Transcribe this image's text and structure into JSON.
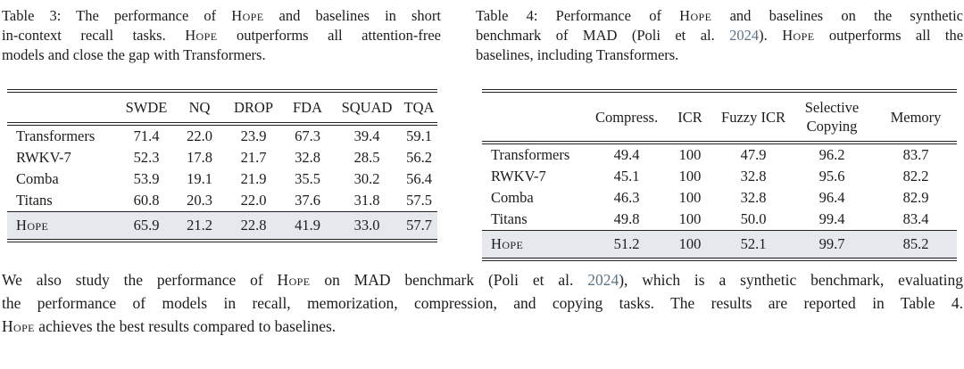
{
  "page": {
    "background": "#ffffff",
    "text_color": "#1c1c1c",
    "citation_link_color": "#5d7283",
    "highlight_row_bg": "#e5e8ec",
    "rule_color": "#222222"
  },
  "table3": {
    "caption_lines": [
      [
        {
          "t": "Table 3: The performance of "
        },
        {
          "t": "Hope",
          "sc": true
        },
        {
          "t": " and baselines in short"
        }
      ],
      [
        {
          "t": "in-context recall tasks. "
        },
        {
          "t": "Hope",
          "sc": true
        },
        {
          "t": " outperforms all attention-free"
        }
      ],
      [
        {
          "t": "models and close the gap with Transformers."
        }
      ]
    ],
    "headers": [
      "SWDE",
      "NQ",
      "DROP",
      "FDA",
      "SQUAD",
      "TQA"
    ],
    "rows": [
      {
        "name": "Transformers",
        "values": [
          "71.4",
          "22.0",
          "23.9",
          "67.3",
          "39.4",
          "59.1"
        ]
      },
      {
        "name": "RWKV-7",
        "values": [
          "52.3",
          "17.8",
          "21.7",
          "32.8",
          "28.5",
          "56.2"
        ]
      },
      {
        "name": "Comba",
        "values": [
          "53.9",
          "19.1",
          "21.9",
          "35.5",
          "30.2",
          "56.4"
        ]
      },
      {
        "name": "Titans",
        "values": [
          "60.8",
          "20.3",
          "22.0",
          "37.6",
          "31.8",
          "57.5"
        ]
      }
    ],
    "highlight_row": {
      "name": "Hope",
      "values": [
        "65.9",
        "21.2",
        "22.8",
        "41.9",
        "33.0",
        "57.7"
      ]
    }
  },
  "table4": {
    "caption_lines": [
      [
        {
          "t": "Table 4: Performance of "
        },
        {
          "t": "Hope",
          "sc": true
        },
        {
          "t": " and baselines on the synthetic"
        }
      ],
      [
        {
          "t": "benchmark of MAD (Poli et al. "
        },
        {
          "t": "2024",
          "link": true
        },
        {
          "t": "). "
        },
        {
          "t": "Hope",
          "sc": true
        },
        {
          "t": " outperforms all the"
        }
      ],
      [
        {
          "t": "baselines, including Transformers."
        }
      ]
    ],
    "headers": [
      "Compress.",
      "ICR",
      "Fuzzy ICR",
      "Selective\nCopying",
      "Memory"
    ],
    "rows": [
      {
        "name": "Transformers",
        "values": [
          "49.4",
          "100",
          "47.9",
          "96.2",
          "83.7"
        ]
      },
      {
        "name": "RWKV-7",
        "values": [
          "45.1",
          "100",
          "32.8",
          "95.6",
          "82.2"
        ]
      },
      {
        "name": "Comba",
        "values": [
          "46.3",
          "100",
          "32.8",
          "96.4",
          "82.9"
        ]
      },
      {
        "name": "Titans",
        "values": [
          "49.8",
          "100",
          "50.0",
          "99.4",
          "83.4"
        ]
      }
    ],
    "highlight_row": {
      "name": "Hope",
      "values": [
        "51.2",
        "100",
        "52.1",
        "99.7",
        "85.2"
      ]
    }
  },
  "paragraph_lines": [
    [
      {
        "t": "We also study the performance of "
      },
      {
        "t": "Hope",
        "sc": true
      },
      {
        "t": " on MAD benchmark (Poli et al. "
      },
      {
        "t": "2024",
        "link": true
      },
      {
        "t": "), which is a synthetic benchmark, evaluating"
      }
    ],
    [
      {
        "t": "the performance of models in recall, memorization, compression, and copying tasks. The results are reported in Table 4."
      }
    ],
    [
      {
        "t": "Hope",
        "sc": true
      },
      {
        "t": " achieves the best results compared to baselines."
      }
    ]
  ]
}
